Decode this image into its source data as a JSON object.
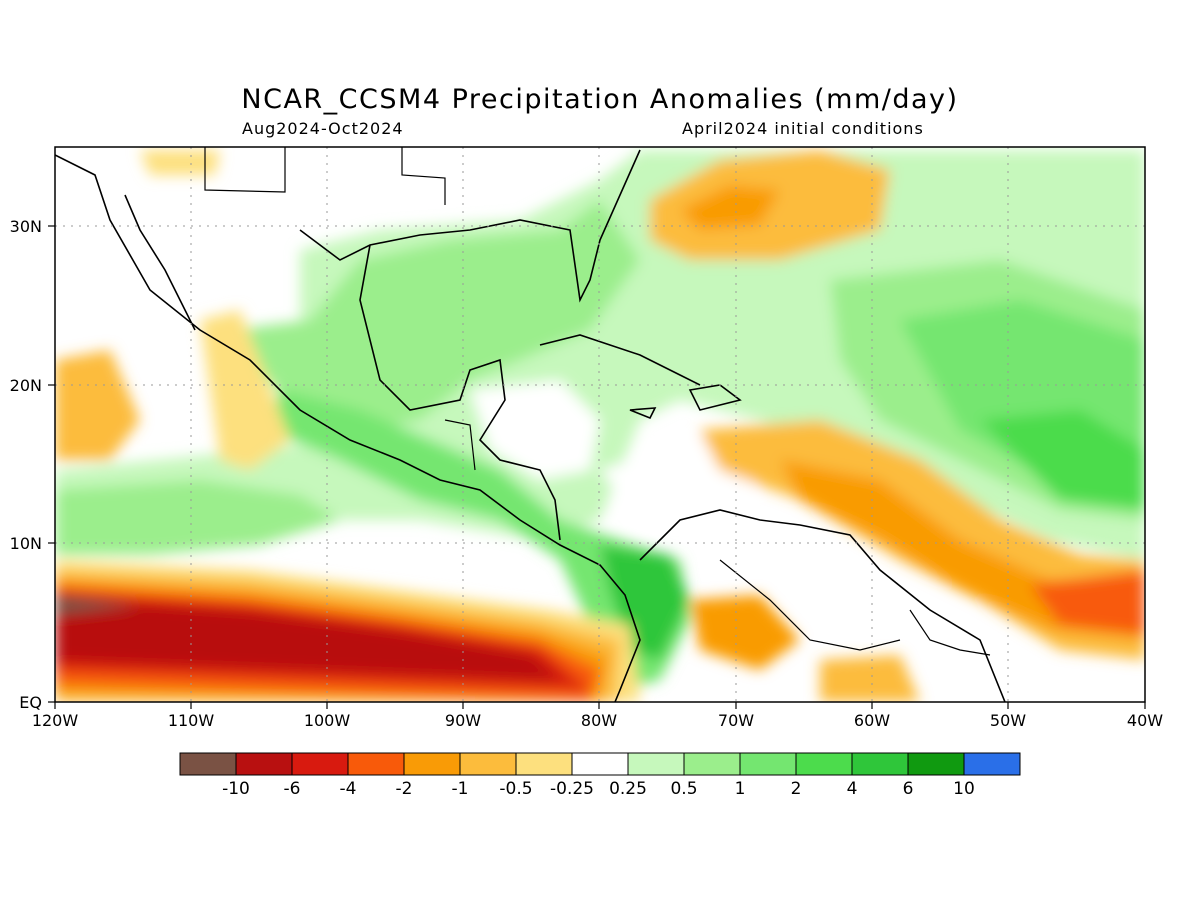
{
  "header": {
    "title": "NCAR_CCSM4 Precipitation Anomalies (mm/day)",
    "period": "Aug2024-Oct2024",
    "init": "April2024 initial conditions"
  },
  "map": {
    "region": "Central America / Caribbean",
    "lon_range": [
      -120,
      -40
    ],
    "lat_range": [
      0,
      35
    ],
    "x_ticks": [
      "120W",
      "110W",
      "100W",
      "90W",
      "80W",
      "70W",
      "60W",
      "50W",
      "40W"
    ],
    "y_ticks": [
      "EQ",
      "10N",
      "20N",
      "30N"
    ],
    "grid": "dotted"
  },
  "colorbar": {
    "colors": [
      "#7a5244",
      "#b81010",
      "#d81a0f",
      "#f85a0a",
      "#f99b06",
      "#fcbc3c",
      "#fde07e",
      "#ffffff",
      "#c6f8bc",
      "#9bee8c",
      "#74e670",
      "#4cdc4c",
      "#2fc63a",
      "#109a10",
      "#2a6fe8"
    ],
    "labels": [
      "-10",
      "-6",
      "-4",
      "-2",
      "-1",
      "-0.5",
      "-0.25",
      "0.25",
      "0.5",
      "1",
      "2",
      "4",
      "6",
      "10"
    ]
  }
}
